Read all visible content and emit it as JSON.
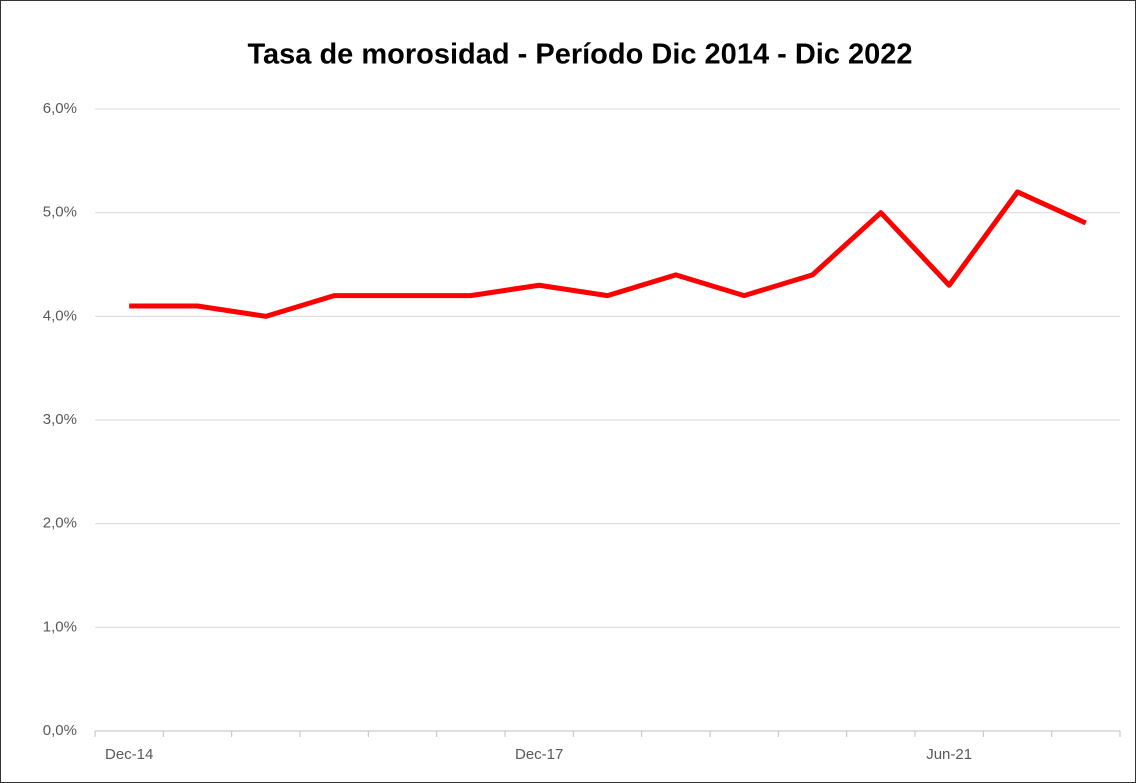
{
  "chart_data": {
    "type": "line",
    "title": "Tasa de morosidad - Período Dic 2014 - Dic 2022",
    "categories": [
      "Dec-14",
      null,
      null,
      null,
      null,
      null,
      "Dec-17",
      null,
      null,
      null,
      null,
      null,
      "Jun-21",
      null,
      null
    ],
    "series": [
      {
        "name": "Tasa de morosidad",
        "color": "#ff0000",
        "values": [
          4.1,
          4.1,
          4.0,
          4.2,
          4.2,
          4.2,
          4.3,
          4.2,
          4.4,
          4.2,
          4.4,
          5.0,
          4.3,
          5.2,
          4.9
        ]
      }
    ],
    "ylim": [
      0,
      6
    ],
    "yticks": [
      {
        "value": 0,
        "label": "0,0%"
      },
      {
        "value": 1,
        "label": "1,0%"
      },
      {
        "value": 2,
        "label": "2,0%"
      },
      {
        "value": 3,
        "label": "3,0%"
      },
      {
        "value": 4,
        "label": "4,0%"
      },
      {
        "value": 5,
        "label": "5,0%"
      },
      {
        "value": 6,
        "label": "6,0%"
      }
    ],
    "grid": true
  }
}
